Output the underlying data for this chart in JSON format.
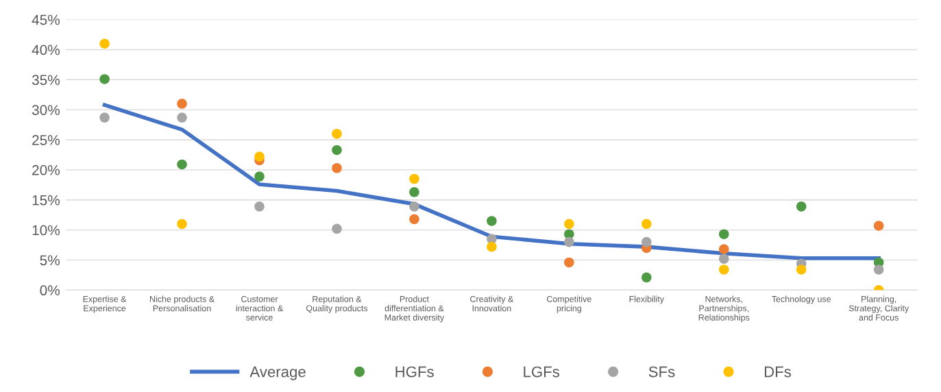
{
  "chart_data": {
    "type": "scatter",
    "categories": [
      "Expertise &\nExperience",
      "Niche products &\nPersonalisation",
      "Customer\ninteraction &\nservice",
      "Reputation &\nQuality products",
      "Product\ndifferentiation &\nMarket diversity",
      "Creativity &\nInnovation",
      "Competitive\npricing",
      "Flexibility",
      "Networks,\nPartnerships,\nRelationships",
      "Technology use",
      "Planning,\nStrategy, Clarity\nand Focus"
    ],
    "series": [
      {
        "name": "Average",
        "type": "line",
        "marker": "none",
        "color": "#4472c4",
        "values": [
          30.8,
          26.7,
          17.6,
          16.5,
          14.3,
          8.9,
          7.7,
          7.2,
          6.1,
          5.3,
          5.3
        ]
      },
      {
        "name": "HGFs",
        "color": "#4e9a44",
        "values": [
          35.1,
          20.9,
          18.9,
          23.3,
          16.3,
          11.5,
          9.3,
          2.1,
          9.3,
          13.9,
          4.6
        ]
      },
      {
        "name": "LGFs",
        "color": "#ed7d31",
        "values": [
          null,
          31.0,
          21.6,
          20.3,
          11.8,
          null,
          4.6,
          7.0,
          6.8,
          null,
          10.7
        ]
      },
      {
        "name": "SFs",
        "color": "#a5a5a5",
        "values": [
          28.7,
          28.7,
          13.9,
          10.2,
          13.9,
          8.5,
          8.0,
          8.0,
          5.2,
          4.4,
          3.4
        ]
      },
      {
        "name": "DFs",
        "color": "#ffc000",
        "values": [
          41.0,
          11.0,
          22.2,
          26.0,
          18.5,
          7.2,
          11.0,
          11.0,
          3.4,
          3.4,
          0
        ]
      }
    ],
    "ylim": [
      0,
      45
    ],
    "yticks": [
      {
        "value": 0,
        "label": "0%"
      },
      {
        "value": 5,
        "label": "5%"
      },
      {
        "value": 10,
        "label": "10%"
      },
      {
        "value": 15,
        "label": "15%"
      },
      {
        "value": 20,
        "label": "20%"
      },
      {
        "value": 25,
        "label": "25%"
      },
      {
        "value": 30,
        "label": "30%"
      },
      {
        "value": 35,
        "label": "35%"
      },
      {
        "value": 40,
        "label": "40%"
      },
      {
        "value": 45,
        "label": "45%"
      }
    ],
    "grid": "y",
    "legend": "bottom",
    "marker": "circle"
  }
}
